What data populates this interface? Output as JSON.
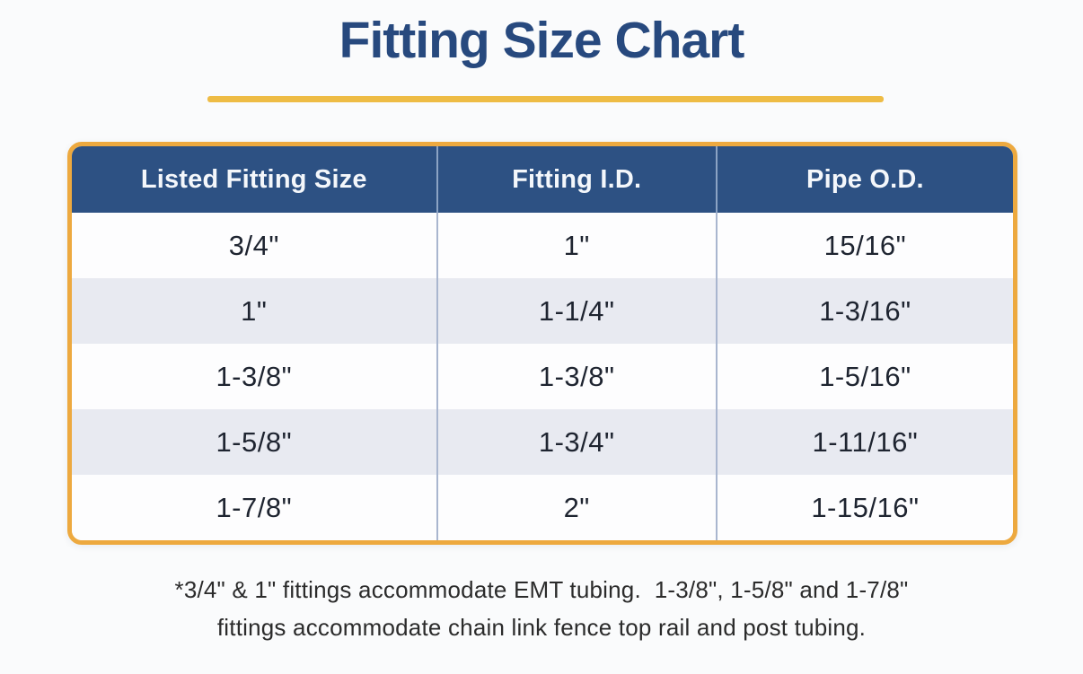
{
  "title": "Fitting Size Chart",
  "chart_data": {
    "type": "table",
    "title": "Fitting Size Chart",
    "columns": [
      "Listed Fitting Size",
      "Fitting I.D.",
      "Pipe O.D."
    ],
    "rows": [
      [
        "3/4\"",
        "1\"",
        "15/16\""
      ],
      [
        "1\"",
        "1-1/4\"",
        "1-3/16\""
      ],
      [
        "1-3/8\"",
        "1-3/8\"",
        "1-5/16\""
      ],
      [
        "1-5/8\"",
        "1-3/4\"",
        "1-11/16\""
      ],
      [
        "1-7/8\"",
        "2\"",
        "1-15/16\""
      ]
    ],
    "footnotes": [
      "*3/4\" & 1\" fittings accommodate EMT tubing.  1-3/8\", 1-5/8\" and 1-7/8\"",
      "fittings accommodate chain link fence top rail and post tubing."
    ],
    "layout_hints": {
      "row_striping": "alternating white and light lavender",
      "header_style": "navy background, white bold text",
      "border": "gold rounded border"
    }
  },
  "colors": {
    "page_background": "#fafbfc",
    "title_navy": "#27497e",
    "gold_underline": "#eebc45",
    "gold_border": "#eda93f",
    "header_background": "#2d5183",
    "header_text": "#f4f7fb",
    "row_white": "#fdfdfe",
    "row_alt": "#e8eaf1",
    "column_divider": "#a9b6cf",
    "cell_text": "#1e2430",
    "footnote_text": "#2b2b2b"
  }
}
